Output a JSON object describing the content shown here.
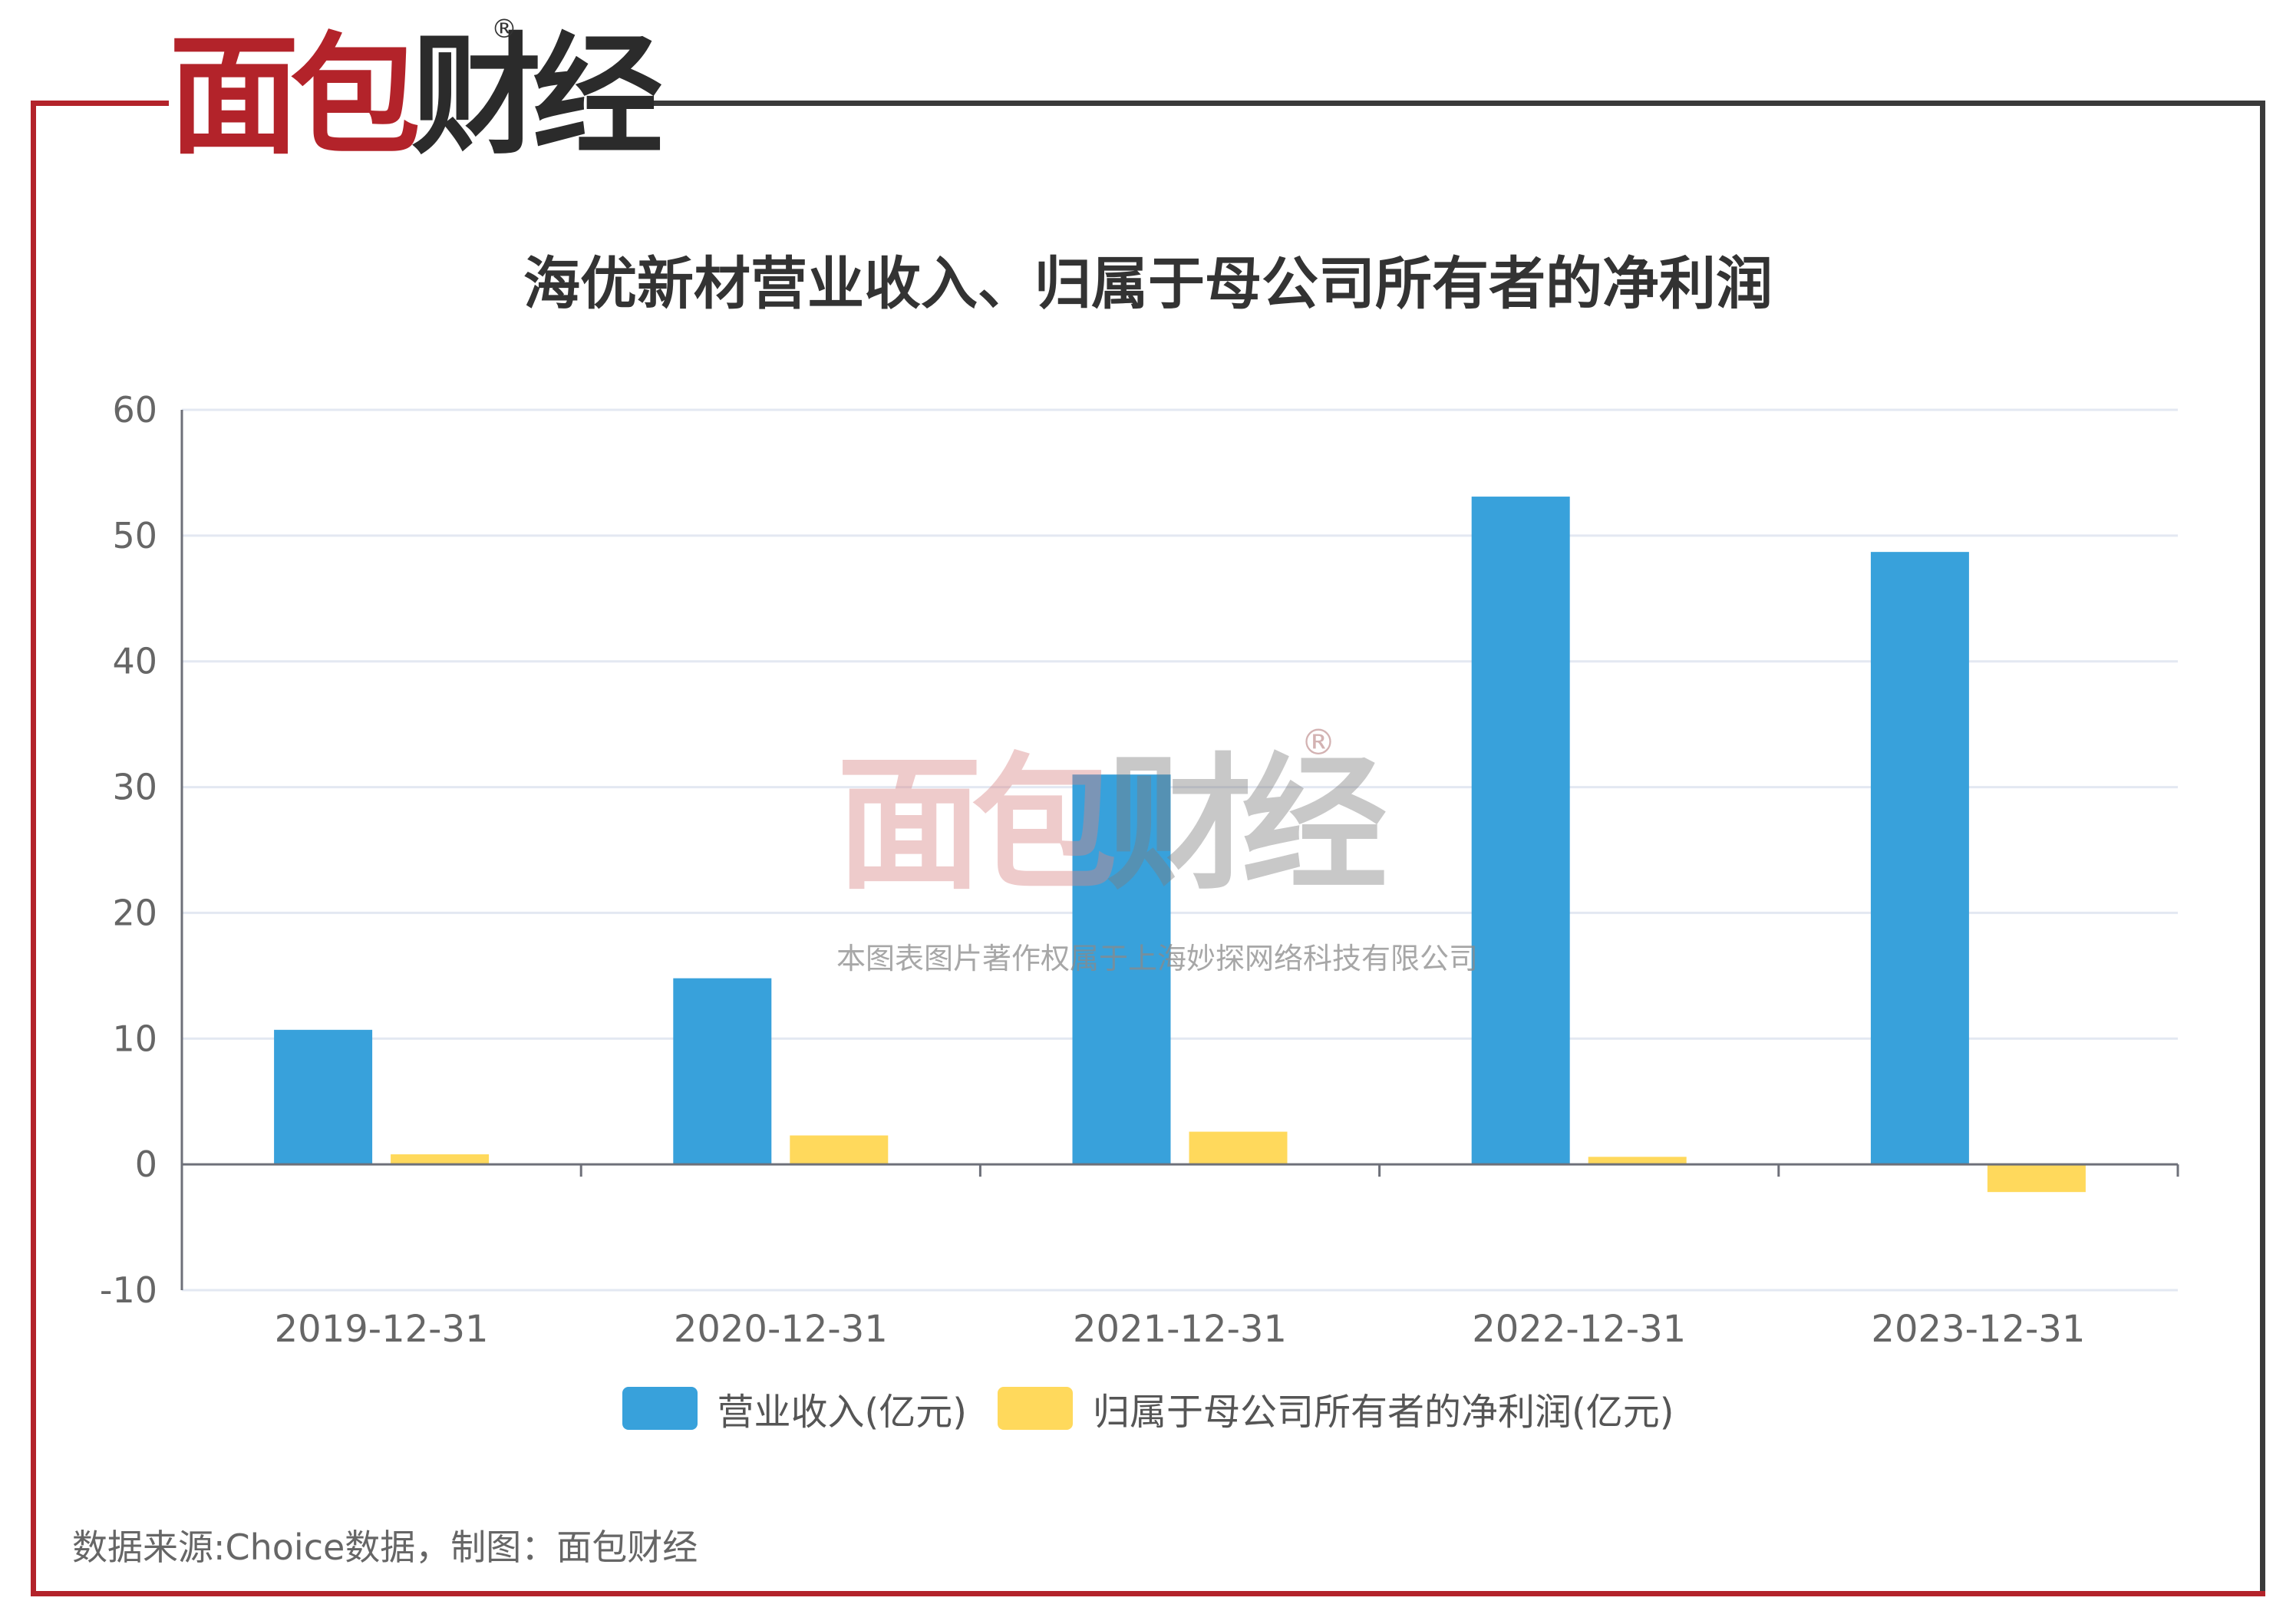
{
  "brand": {
    "name_red": "面包",
    "name_dark": "财经",
    "registered_mark": "®",
    "colors": {
      "red": "#b3232a",
      "dark": "#2b2b2b"
    }
  },
  "watermark": {
    "name_red": "面包",
    "name_dark": "财经",
    "registered_mark": "®",
    "copyright": "本图表图片著作权属于上海妙探网络科技有限公司"
  },
  "source_note": "数据来源:Choice数据，制图：面包财经",
  "chart_data": {
    "type": "bar",
    "title": "海优新材营业收入、归属于母公司所有者的净利润",
    "categories": [
      "2019-12-31",
      "2020-12-31",
      "2021-12-31",
      "2022-12-31",
      "2023-12-31"
    ],
    "series": [
      {
        "name": "营业收入(亿元)",
        "color": "#38a1db",
        "values": [
          10.7,
          14.8,
          31.0,
          53.1,
          48.7
        ]
      },
      {
        "name": "归属于母公司所有者的净利润(亿元)",
        "color": "#ffd95c",
        "values": [
          0.8,
          2.3,
          2.6,
          0.6,
          -2.2
        ]
      }
    ],
    "ylim": [
      -10,
      60
    ],
    "yticks": [
      60,
      50,
      40,
      30,
      20,
      10,
      0,
      -10
    ],
    "grid": true,
    "legend_position": "bottom",
    "xlabel": "",
    "ylabel": ""
  }
}
